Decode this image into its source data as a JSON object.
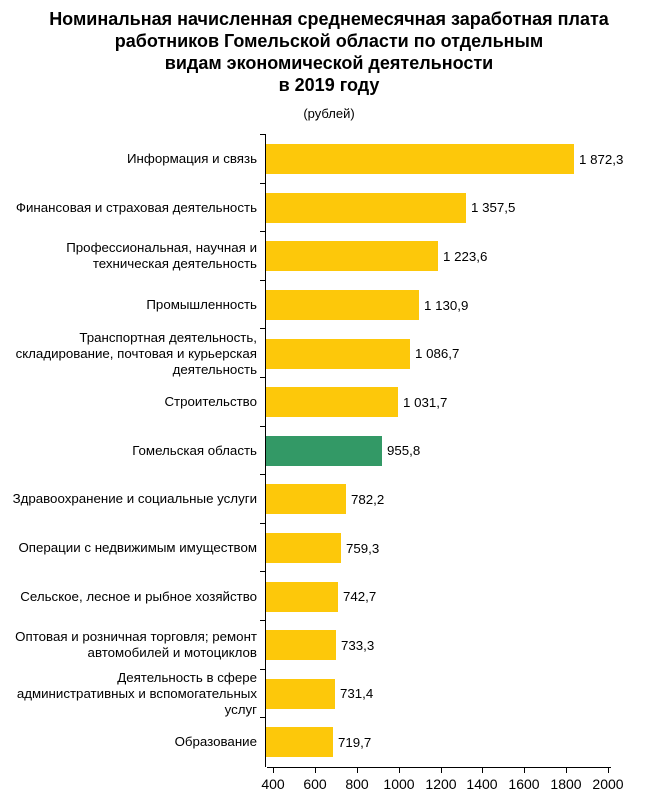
{
  "title": {
    "lines": [
      "Номинальная начисленная среднемесячная заработная плата",
      "работников Гомельской области по отдельным",
      "видам экономической деятельности",
      "в 2019 году"
    ],
    "subtitle": "(рублей)"
  },
  "colors": {
    "bar": "#FDC80A",
    "highlight": "#339966",
    "axis": "#000000",
    "text": "#000000"
  },
  "chart_data": {
    "type": "bar",
    "orientation": "horizontal",
    "title": "Номинальная начисленная среднемесячная заработная плата работников Гомельской области по отдельным видам экономической деятельности в 2019 году",
    "subtitle": "(рублей)",
    "xlabel": "",
    "ylabel": "",
    "grid": false,
    "legend": false,
    "xlim": [
      400,
      2000
    ],
    "xticks": [
      400,
      600,
      800,
      1000,
      1200,
      1400,
      1600,
      1800,
      2000
    ],
    "highlight_index": 6,
    "categories": [
      "Информация и связь",
      "Финансовая и страховая деятельность",
      "Профессиональная, научная и техническая деятельность",
      "Промышленность",
      "Транспортная деятельность, складирование, почтовая и курьерская деятельность",
      "Строительство",
      "Гомельская область",
      "Здравоохранение и социальные услуги",
      "Операции с недвижимым имуществом",
      "Сельское, лесное и рыбное хозяйство",
      "Оптовая и розничная торговля; ремонт автомобилей и мотоциклов",
      "Деятельность в сфере административных и вспомогательных услуг",
      "Образование"
    ],
    "values": [
      1872.3,
      1357.5,
      1223.6,
      1130.9,
      1086.7,
      1031.7,
      955.8,
      782.2,
      759.3,
      742.7,
      733.3,
      731.4,
      719.7
    ],
    "value_labels": [
      "1 872,3",
      "1 357,5",
      "1 223,6",
      "1 130,9",
      "1 086,7",
      "1 031,7",
      "955,8",
      "782,2",
      "759,3",
      "742,7",
      "733,3",
      "731,4",
      "719,7"
    ]
  }
}
